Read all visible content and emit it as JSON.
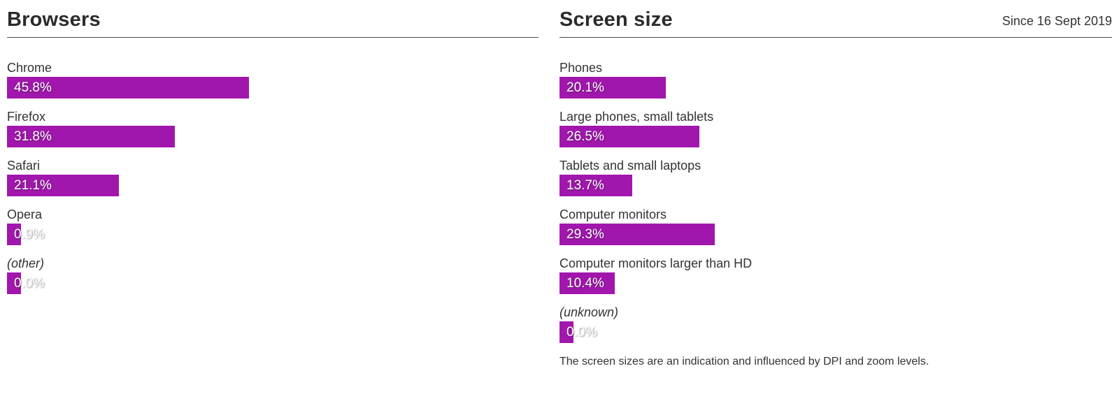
{
  "accent_color": "#a116ad",
  "panels": [
    {
      "title": "Browsers",
      "period": "",
      "rows": [
        {
          "label": "Chrome",
          "value": 45.8,
          "display": "45.8%",
          "italic": false
        },
        {
          "label": "Firefox",
          "value": 31.8,
          "display": "31.8%",
          "italic": false
        },
        {
          "label": "Safari",
          "value": 21.1,
          "display": "21.1%",
          "italic": false
        },
        {
          "label": "Opera",
          "value": 0.9,
          "display": "0.9%",
          "italic": false
        },
        {
          "label": "(other)",
          "value": 0.0,
          "display": "0.0%",
          "italic": true
        }
      ],
      "footnote": ""
    },
    {
      "title": "Screen size",
      "period": "Since 16 Sept 2019",
      "rows": [
        {
          "label": "Phones",
          "value": 20.1,
          "display": "20.1%",
          "italic": false
        },
        {
          "label": "Large phones, small tablets",
          "value": 26.5,
          "display": "26.5%",
          "italic": false
        },
        {
          "label": "Tablets and small laptops",
          "value": 13.7,
          "display": "13.7%",
          "italic": false
        },
        {
          "label": "Computer monitors",
          "value": 29.3,
          "display": "29.3%",
          "italic": false
        },
        {
          "label": "Computer monitors larger than HD",
          "value": 10.4,
          "display": "10.4%",
          "italic": false
        },
        {
          "label": "(unknown)",
          "value": 0.0,
          "display": "0.0%",
          "italic": true
        }
      ],
      "footnote": "The screen sizes are an indication and influenced by DPI and zoom levels."
    }
  ],
  "chart_data": [
    {
      "type": "bar",
      "orientation": "horizontal",
      "title": "Browsers",
      "categories": [
        "Chrome",
        "Firefox",
        "Safari",
        "Opera",
        "(other)"
      ],
      "values": [
        45.8,
        31.8,
        21.1,
        0.9,
        0.0
      ],
      "value_labels": [
        "45.8%",
        "31.8%",
        "21.1%",
        "0.9%",
        "0.0%"
      ],
      "unit": "%",
      "xlim": [
        0,
        100
      ],
      "grid": false,
      "legend": false,
      "bar_color": "#a116ad"
    },
    {
      "type": "bar",
      "orientation": "horizontal",
      "title": "Screen size",
      "subtitle": "Since 16 Sept 2019",
      "categories": [
        "Phones",
        "Large phones, small tablets",
        "Tablets and small laptops",
        "Computer monitors",
        "Computer monitors larger than HD",
        "(unknown)"
      ],
      "values": [
        20.1,
        26.5,
        13.7,
        29.3,
        10.4,
        0.0
      ],
      "value_labels": [
        "20.1%",
        "26.5%",
        "13.7%",
        "29.3%",
        "10.4%",
        "0.0%"
      ],
      "unit": "%",
      "xlim": [
        0,
        100
      ],
      "grid": false,
      "legend": false,
      "bar_color": "#a116ad",
      "annotation": "The screen sizes are an indication and influenced by DPI and zoom levels."
    }
  ]
}
